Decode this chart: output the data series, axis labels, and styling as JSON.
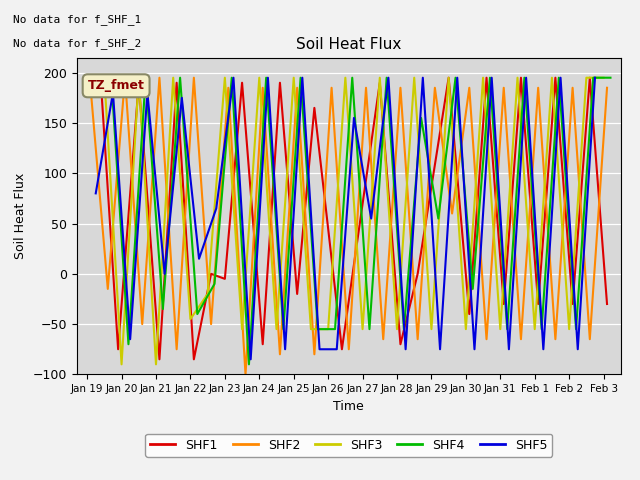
{
  "title": "Soil Heat Flux",
  "ylabel": "Soil Heat Flux",
  "xlabel": "Time",
  "annotation_line1": "No data for f_SHF_1",
  "annotation_line2": "No data for f_SHF_2",
  "legend_label": "TZ_fmet",
  "ylim": [
    -100,
    215
  ],
  "yticks": [
    -100,
    -50,
    0,
    50,
    100,
    150,
    200
  ],
  "series_colors": {
    "SHF1": "#dd0000",
    "SHF2": "#ff8800",
    "SHF3": "#cccc00",
    "SHF4": "#00bb00",
    "SHF5": "#0000dd"
  },
  "tick_labels": [
    "Jan 19",
    "Jan 20",
    "Jan 21",
    "Jan 22",
    "Jan 23",
    "Jan 24",
    "Jan 25",
    "Jan 26",
    "Jan 27",
    "Jan 28",
    "Jan 29",
    "Jan 30",
    "Jan 31",
    "Feb 1",
    "Feb 2",
    "Feb 3"
  ],
  "plot_bg": "#d8d8d8",
  "fig_bg": "#f2f2f2",
  "shf1_x": [
    0.4,
    0.9,
    1.5,
    2.1,
    2.6,
    3.1,
    3.6,
    4.0,
    4.5,
    5.1,
    5.6,
    6.1,
    6.6,
    7.4,
    8.5,
    9.1,
    9.6,
    10.5,
    11.1,
    11.6,
    12.1,
    12.6,
    13.1,
    13.6,
    14.1,
    14.6,
    15.1
  ],
  "shf1_y": [
    190,
    -75,
    190,
    -85,
    190,
    -85,
    0,
    -5,
    190,
    -70,
    190,
    -20,
    165,
    -75,
    190,
    -70,
    0,
    195,
    -40,
    195,
    -30,
    195,
    -30,
    195,
    -30,
    195,
    -30
  ],
  "shf2_x": [
    0.1,
    0.6,
    1.1,
    1.6,
    2.1,
    2.6,
    3.1,
    3.6,
    4.1,
    4.6,
    5.1,
    5.6,
    6.1,
    6.6,
    7.1,
    7.6,
    8.1,
    8.6,
    9.1,
    9.6,
    10.1,
    10.6,
    11.1,
    11.6,
    12.1,
    12.6,
    13.1,
    13.6,
    14.1,
    14.6,
    15.1
  ],
  "shf2_y": [
    185,
    -15,
    195,
    -50,
    195,
    -75,
    195,
    -50,
    185,
    -100,
    185,
    -80,
    185,
    -80,
    185,
    -75,
    185,
    -65,
    185,
    -65,
    185,
    60,
    185,
    -65,
    185,
    -65,
    185,
    -65,
    185,
    -65,
    185
  ],
  "shf3_x": [
    0.0,
    0.5,
    1.0,
    1.5,
    2.0,
    2.5,
    3.0,
    3.5,
    4.0,
    4.5,
    5.0,
    5.5,
    6.0,
    6.5,
    7.0,
    7.5,
    8.0,
    8.5,
    9.0,
    9.5,
    10.0,
    10.5,
    11.0,
    11.5,
    12.0,
    12.5,
    13.0,
    13.5,
    14.0,
    14.5,
    15.0
  ],
  "shf3_y": [
    195,
    195,
    -90,
    195,
    -90,
    195,
    -45,
    -20,
    195,
    -55,
    195,
    -55,
    195,
    -55,
    -55,
    195,
    -55,
    195,
    -55,
    195,
    -55,
    195,
    -55,
    195,
    -55,
    195,
    -55,
    195,
    -55,
    195,
    195
  ],
  "shf4_x": [
    0.2,
    0.7,
    1.2,
    1.7,
    2.2,
    2.7,
    3.2,
    3.7,
    4.2,
    4.7,
    5.2,
    5.7,
    6.2,
    6.7,
    7.2,
    7.7,
    8.2,
    8.7,
    9.2,
    9.7,
    10.2,
    10.7,
    11.2,
    11.7,
    12.2,
    12.7,
    13.2,
    13.7,
    14.2,
    14.7,
    15.2
  ],
  "shf4_y": [
    195,
    195,
    -70,
    195,
    -35,
    195,
    -40,
    -10,
    195,
    -90,
    195,
    -55,
    195,
    -55,
    -55,
    195,
    -55,
    195,
    -55,
    155,
    55,
    195,
    -15,
    195,
    -55,
    195,
    -55,
    195,
    -55,
    195,
    195
  ],
  "shf5_x": [
    0.25,
    0.75,
    1.25,
    1.75,
    2.25,
    2.75,
    3.25,
    3.75,
    4.25,
    4.75,
    5.25,
    5.75,
    6.25,
    6.75,
    7.25,
    7.75,
    8.25,
    8.75,
    9.25,
    9.75,
    10.25,
    10.75,
    11.25,
    11.75,
    12.25,
    12.75,
    13.25,
    13.75,
    14.25,
    14.75
  ],
  "shf5_y": [
    80,
    180,
    -65,
    180,
    0,
    175,
    15,
    65,
    195,
    -85,
    195,
    -75,
    195,
    -75,
    -75,
    155,
    55,
    195,
    -75,
    195,
    -75,
    195,
    -75,
    195,
    -75,
    195,
    -75,
    195,
    -75,
    195
  ]
}
